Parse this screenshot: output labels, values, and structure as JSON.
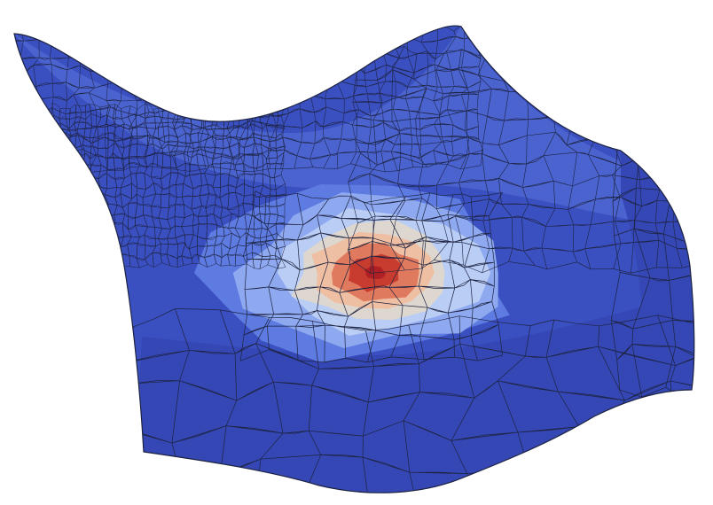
{
  "figure": {
    "kind": "3d-polygonal-mesh-surface",
    "colormap": "coolwarm",
    "colors": {
      "background": "#ffffff",
      "base": "#3a4fc0",
      "base_dark": "#3447b4",
      "shade_light": "#4a63cf",
      "ring_mid_blue": "#5d7be0",
      "ring_light_blue": "#8ea9ef",
      "ring_pale_blue": "#b9cdf5",
      "ring_cream": "#ddd7cf",
      "ring_peach": "#efbfa3",
      "ring_salmon": "#e07a5f",
      "hot_red": "#c83c30",
      "peak_darkred": "#b01f24",
      "edges": "#1d2340"
    },
    "hotspot": {
      "levels": [
        1.0,
        0.85,
        0.7,
        0.55,
        0.4,
        0.25,
        0.1
      ]
    }
  }
}
